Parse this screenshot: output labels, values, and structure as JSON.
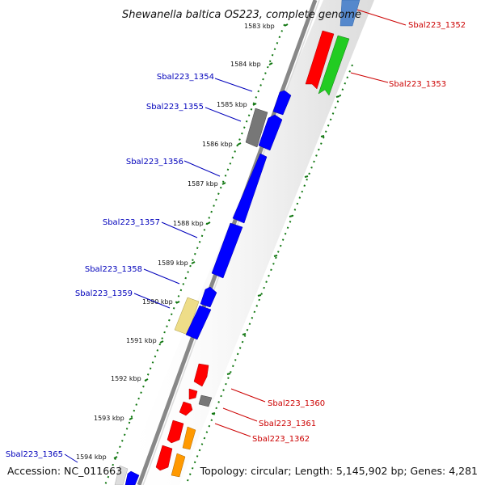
{
  "title": "Shewanella baltica OS223, complete genome",
  "footer": {
    "accession": "Accession: NC_011663",
    "stats": "Topology: circular; Length: 5,145,902 bp; Genes: 4,281"
  },
  "colors": {
    "blue": "#0000ff",
    "red": "#ff0000",
    "green": "#22cc22",
    "grey": "#777777",
    "yellow": "#eedd88",
    "orange": "#ff9900",
    "steelblue": "#5588cc",
    "tick_green": "#117711",
    "label_blue": "#0000bb",
    "label_red": "#cc0000"
  },
  "ticks": [
    {
      "label": "1583 kbp"
    },
    {
      "label": "1584 kbp"
    },
    {
      "label": "1585 kbp"
    },
    {
      "label": "1586 kbp"
    },
    {
      "label": "1587 kbp"
    },
    {
      "label": "1588 kbp"
    },
    {
      "label": "1589 kbp"
    },
    {
      "label": "1590 kbp"
    },
    {
      "label": "1591 kbp"
    },
    {
      "label": "1592 kbp"
    },
    {
      "label": "1593 kbp"
    },
    {
      "label": "1594 kbp"
    }
  ],
  "gene_labels": [
    {
      "text": "Sbal223_1352",
      "strand": "forward"
    },
    {
      "text": "Sbal223_1353",
      "strand": "forward"
    },
    {
      "text": "Sbal223_1354",
      "strand": "reverse"
    },
    {
      "text": "Sbal223_1355",
      "strand": "reverse"
    },
    {
      "text": "Sbal223_1356",
      "strand": "reverse"
    },
    {
      "text": "Sbal223_1357",
      "strand": "reverse"
    },
    {
      "text": "Sbal223_1358",
      "strand": "reverse"
    },
    {
      "text": "Sbal223_1359",
      "strand": "reverse"
    },
    {
      "text": "Sbal223_1360",
      "strand": "forward"
    },
    {
      "text": "Sbal223_1361",
      "strand": "forward"
    },
    {
      "text": "Sbal223_1362",
      "strand": "forward"
    },
    {
      "text": "Sbal223_1365",
      "strand": "reverse"
    }
  ]
}
